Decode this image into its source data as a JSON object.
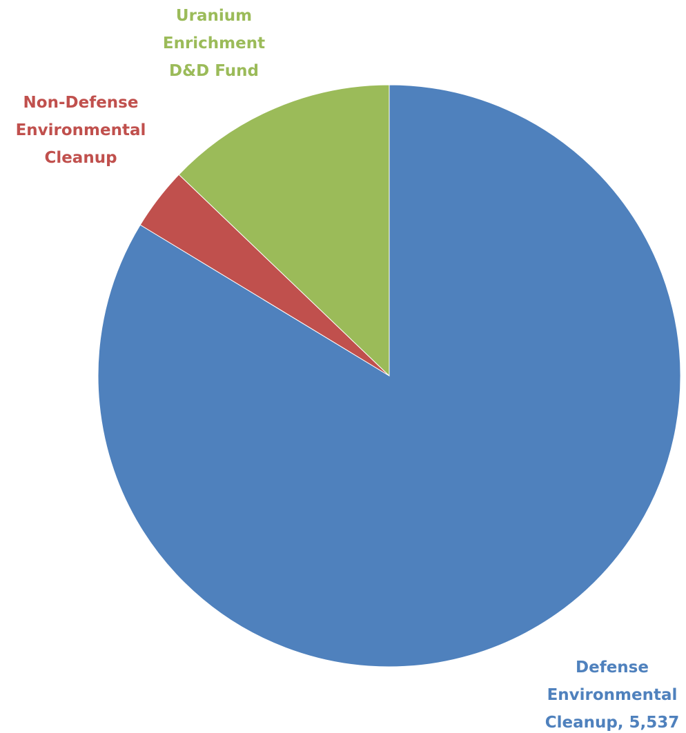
{
  "chart_data": {
    "type": "pie",
    "title": "",
    "start_angle_deg": 0,
    "direction": "clockwise",
    "legend": "none",
    "slices": [
      {
        "name": "Defense Environmental Cleanup",
        "label_lines": [
          "Defense",
          "Environmental",
          "Cleanup, 5,537"
        ],
        "value": 5537,
        "color": "#4F81BD"
      },
      {
        "name": "Non-Defense Environmental Cleanup",
        "label_lines": [
          "Non-Defense",
          "Environmental",
          "Cleanup"
        ],
        "value": 230,
        "color": "#C0504D"
      },
      {
        "name": "Uranium Enrichment D&D Fund",
        "label_lines": [
          "Uranium",
          "Enrichment",
          "D&D Fund"
        ],
        "value": 850,
        "color": "#9BBB59"
      }
    ]
  }
}
